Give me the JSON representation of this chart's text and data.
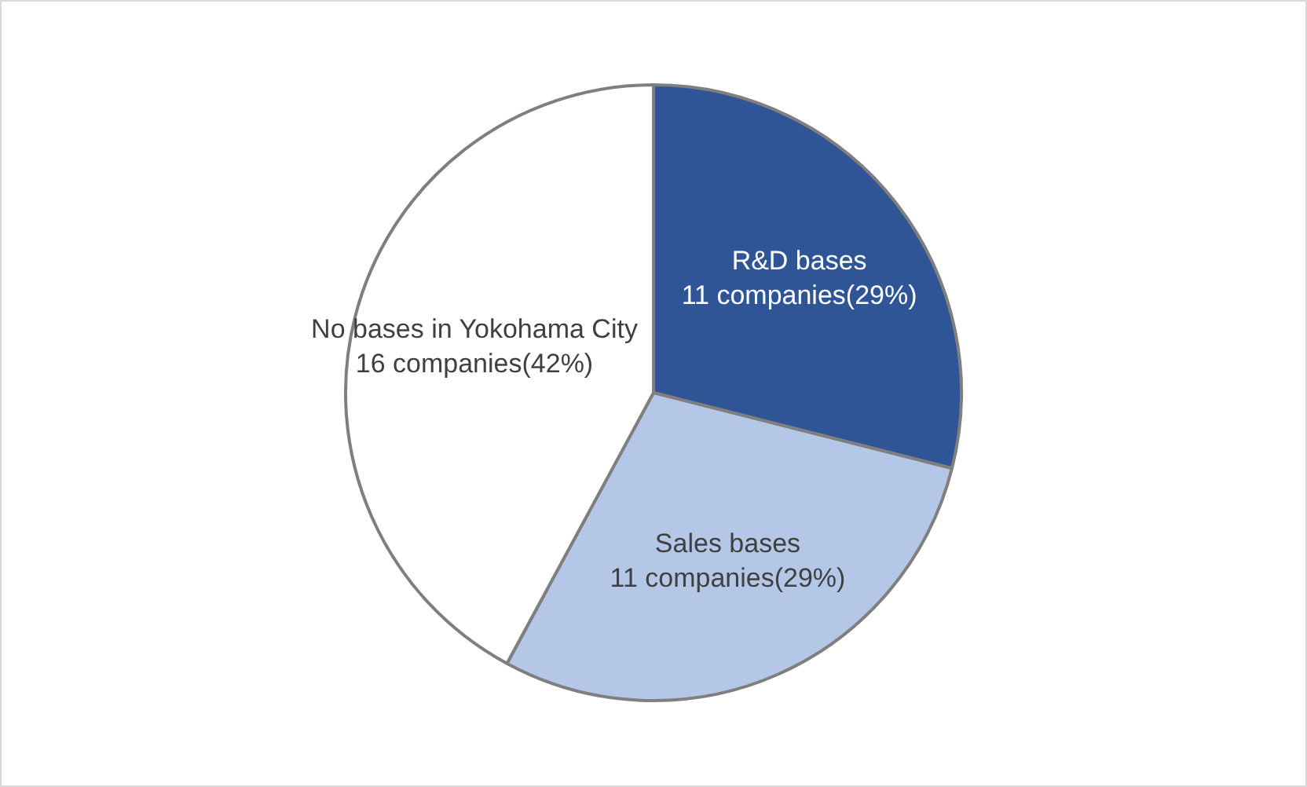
{
  "chart_data": {
    "type": "pie",
    "categories": [
      "R&D bases",
      "Sales bases",
      "No bases in Yokohama City"
    ],
    "values": [
      11,
      11,
      16
    ],
    "value_labels": [
      "11 companies(29%)",
      "11 companies(29%)",
      "16 companies(42%)"
    ],
    "colors": [
      "#2f5597",
      "#b4c7e7",
      "#ffffff"
    ],
    "legend": false
  }
}
